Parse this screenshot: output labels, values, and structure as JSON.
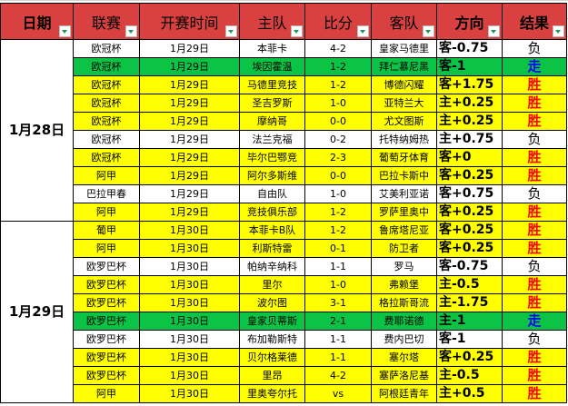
{
  "headers": [
    "日期",
    "联赛",
    "开赛时间",
    "主队",
    "比分",
    "客队",
    "方向",
    "结果"
  ],
  "colors": {
    "header": "#d94141",
    "yellow": "#ffff00",
    "green": "#0bc446",
    "win": "#ff0000",
    "push": "#0000ff"
  },
  "groups": [
    {
      "date": "1月28日",
      "rows": [
        {
          "league": "欧冠杯",
          "time": "1月29日",
          "home": "本菲卡",
          "score": "4-2",
          "away": "皇家马德里",
          "dir": "客-0.75",
          "result": "负",
          "color": "white"
        },
        {
          "league": "欧冠杯",
          "time": "1月29日",
          "home": "埃因霍温",
          "score": "1-2",
          "away": "拜仁慕尼黑",
          "dir": "客-1",
          "result": "走",
          "color": "green"
        },
        {
          "league": "欧冠杯",
          "time": "1月29日",
          "home": "马德里竞技",
          "score": "1-2",
          "away": "博德闪耀",
          "dir": "客+1.75",
          "result": "胜",
          "color": "yellow"
        },
        {
          "league": "欧冠杯",
          "time": "1月29日",
          "home": "圣吉罗斯",
          "score": "1-0",
          "away": "亚特兰大",
          "dir": "主+0.25",
          "result": "胜",
          "color": "yellow"
        },
        {
          "league": "欧冠杯",
          "time": "1月29日",
          "home": "摩纳哥",
          "score": "0-0",
          "away": "尤文图斯",
          "dir": "主+0.25",
          "result": "胜",
          "color": "yellow"
        },
        {
          "league": "欧冠杯",
          "time": "1月29日",
          "home": "法兰克福",
          "score": "0-2",
          "away": "托特纳姆热",
          "dir": "主+0.75",
          "result": "负",
          "color": "white"
        },
        {
          "league": "欧冠杯",
          "time": "1月29日",
          "home": "毕尔巴鄂竞",
          "score": "2-3",
          "away": "葡萄牙体育",
          "dir": "客+0",
          "result": "胜",
          "color": "yellow"
        },
        {
          "league": "阿甲",
          "time": "1月29日",
          "home": "阿尔多斯维",
          "score": "0-0",
          "away": "巴拉卡斯中",
          "dir": "客+0.25",
          "result": "胜",
          "color": "yellow"
        },
        {
          "league": "巴拉甲春",
          "time": "1月29日",
          "home": "自由队",
          "score": "1-0",
          "away": "艾美利亚诺",
          "dir": "客+0.75",
          "result": "负",
          "color": "white"
        },
        {
          "league": "阿甲",
          "time": "1月29日",
          "home": "竞技俱乐部",
          "score": "1-2",
          "away": "罗萨里奥中",
          "dir": "客+0.25",
          "result": "胜",
          "color": "yellow"
        }
      ]
    },
    {
      "date": "1月29日",
      "rows": [
        {
          "league": "葡甲",
          "time": "1月30日",
          "home": "本菲卡B队",
          "score": "1-2",
          "away": "鲁席塔尼亚",
          "dir": "客+0.25",
          "result": "胜",
          "color": "yellow"
        },
        {
          "league": "阿甲",
          "time": "1月30日",
          "home": "利斯特雷",
          "score": "0-1",
          "away": "防卫者",
          "dir": "客+0.25",
          "result": "胜",
          "color": "yellow"
        },
        {
          "league": "欧罗巴杯",
          "time": "1月30日",
          "home": "帕纳辛纳科",
          "score": "1-1",
          "away": "罗马",
          "dir": "客-0.75",
          "result": "负",
          "color": "white"
        },
        {
          "league": "欧罗巴杯",
          "time": "1月30日",
          "home": "里尔",
          "score": "1-0",
          "away": "弗赖堡",
          "dir": "主-0.5",
          "result": "胜",
          "color": "yellow"
        },
        {
          "league": "欧罗巴杯",
          "time": "1月30日",
          "home": "波尔图",
          "score": "3-1",
          "away": "格拉斯哥流",
          "dir": "主-1.75",
          "result": "胜",
          "color": "yellow"
        },
        {
          "league": "欧罗巴杯",
          "time": "1月30日",
          "home": "皇家贝蒂斯",
          "score": "2-1",
          "away": "费耶诺德",
          "dir": "主-1",
          "result": "走",
          "color": "green"
        },
        {
          "league": "欧罗巴杯",
          "time": "1月30日",
          "home": "布加勒斯特",
          "score": "1-1",
          "away": "费内巴切",
          "dir": "客-1",
          "result": "负",
          "color": "white"
        },
        {
          "league": "欧罗巴杯",
          "time": "1月30日",
          "home": "贝尔格莱德",
          "score": "1-1",
          "away": "塞尔塔",
          "dir": "客+0.25",
          "result": "胜",
          "color": "yellow"
        },
        {
          "league": "欧罗巴杯",
          "time": "1月30日",
          "home": "里昂",
          "score": "4-2",
          "away": "塞萨洛尼基",
          "dir": "主-0.5",
          "result": "胜",
          "color": "yellow"
        },
        {
          "league": "阿甲",
          "time": "1月30日",
          "home": "里奥夸尔托",
          "score": "vs",
          "away": "阿根廷青年",
          "dir": "主+0.5",
          "result": "胜",
          "color": "yellow"
        }
      ]
    }
  ]
}
